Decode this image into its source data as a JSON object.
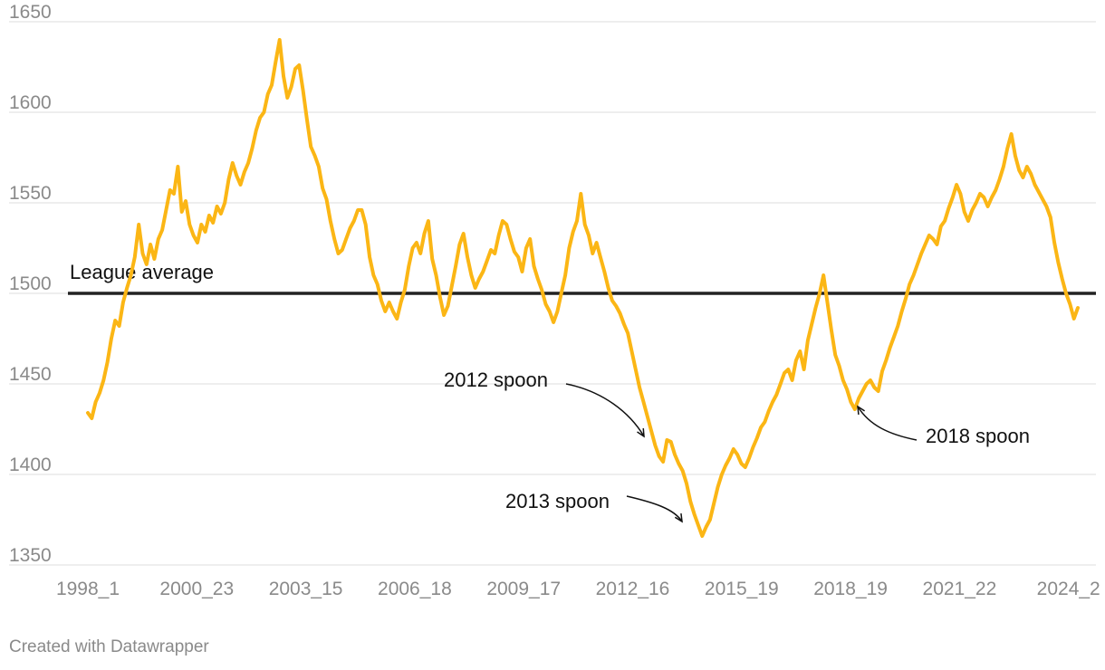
{
  "chart_data": {
    "type": "line",
    "title": "",
    "xlabel": "",
    "ylabel": "",
    "ylim": [
      1350,
      1650
    ],
    "grid": true,
    "yticks": [
      1350,
      1400,
      1450,
      1500,
      1550,
      1600,
      1650
    ],
    "xticks": [
      "1998_1",
      "2000_23",
      "2003_15",
      "2006_18",
      "2009_17",
      "2012_16",
      "2015_19",
      "2018_19",
      "2021_22",
      "2024_2"
    ],
    "x_start": "1998_1",
    "x_end": "2024_2",
    "reference_line": {
      "value": 1500,
      "label": "League average"
    },
    "series": [
      {
        "name": "",
        "color": "#fbb615",
        "note": "values are sampled at roughly even steps between the first and last x points",
        "values": [
          1434,
          1431,
          1440,
          1445,
          1452,
          1462,
          1475,
          1485,
          1482,
          1495,
          1503,
          1510,
          1520,
          1538,
          1522,
          1516,
          1527,
          1519,
          1530,
          1535,
          1546,
          1557,
          1555,
          1570,
          1545,
          1551,
          1538,
          1532,
          1528,
          1538,
          1534,
          1543,
          1539,
          1548,
          1544,
          1550,
          1563,
          1572,
          1565,
          1560,
          1567,
          1572,
          1580,
          1590,
          1597,
          1600,
          1610,
          1615,
          1628,
          1640,
          1620,
          1608,
          1614,
          1624,
          1626,
          1612,
          1596,
          1581,
          1576,
          1570,
          1558,
          1552,
          1540,
          1530,
          1522,
          1524,
          1530,
          1536,
          1540,
          1546,
          1546,
          1538,
          1520,
          1510,
          1505,
          1496,
          1490,
          1495,
          1490,
          1486,
          1495,
          1502,
          1515,
          1525,
          1528,
          1522,
          1533,
          1540,
          1519,
          1510,
          1498,
          1488,
          1493,
          1504,
          1515,
          1527,
          1533,
          1520,
          1510,
          1503,
          1508,
          1512,
          1518,
          1524,
          1522,
          1532,
          1540,
          1538,
          1530,
          1523,
          1520,
          1512,
          1525,
          1530,
          1515,
          1508,
          1502,
          1494,
          1490,
          1484,
          1490,
          1500,
          1510,
          1525,
          1534,
          1540,
          1555,
          1538,
          1532,
          1522,
          1528,
          1520,
          1512,
          1503,
          1496,
          1493,
          1489,
          1483,
          1478,
          1468,
          1458,
          1448,
          1440,
          1432,
          1424,
          1416,
          1410,
          1407,
          1419,
          1418,
          1411,
          1406,
          1402,
          1395,
          1385,
          1378,
          1372,
          1366,
          1371,
          1375,
          1384,
          1393,
          1400,
          1405,
          1409,
          1414,
          1411,
          1406,
          1404,
          1409,
          1415,
          1420,
          1426,
          1429,
          1435,
          1440,
          1444,
          1450,
          1456,
          1458,
          1452,
          1463,
          1468,
          1458,
          1474,
          1483,
          1492,
          1500,
          1510,
          1495,
          1480,
          1466,
          1460,
          1452,
          1447,
          1440,
          1436,
          1442,
          1446,
          1450,
          1452,
          1448,
          1446,
          1457,
          1463,
          1470,
          1476,
          1482,
          1490,
          1497,
          1505,
          1510,
          1516,
          1522,
          1527,
          1532,
          1530,
          1527,
          1537,
          1540,
          1547,
          1553,
          1560,
          1555,
          1545,
          1540,
          1546,
          1550,
          1555,
          1553,
          1548,
          1553,
          1557,
          1563,
          1570,
          1580,
          1588,
          1576,
          1568,
          1564,
          1570,
          1566,
          1560,
          1556,
          1552,
          1548,
          1542,
          1528,
          1517,
          1508,
          1500,
          1494,
          1486,
          1492
        ]
      }
    ],
    "annotations": [
      {
        "text": "2012 spoon"
      },
      {
        "text": "2013 spoon"
      },
      {
        "text": "2018 spoon"
      }
    ]
  },
  "footer": {
    "credit": "Created with Datawrapper"
  }
}
